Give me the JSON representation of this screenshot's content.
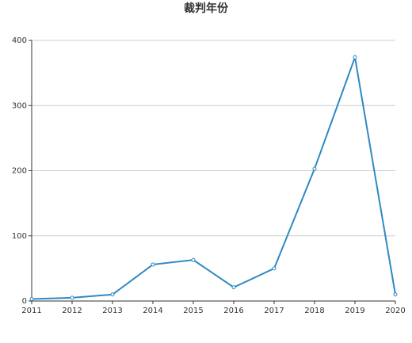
{
  "chart_data": {
    "type": "line",
    "title": "裁判年份",
    "categories": [
      "2011",
      "2012",
      "2013",
      "2014",
      "2015",
      "2016",
      "2017",
      "2018",
      "2019",
      "2020"
    ],
    "values": [
      3,
      5,
      10,
      56,
      63,
      21,
      50,
      203,
      374,
      10
    ],
    "color": "#2f89c2",
    "ylim": [
      0,
      400
    ],
    "yticks": [
      0,
      100,
      200,
      300,
      400
    ],
    "grid": true
  }
}
